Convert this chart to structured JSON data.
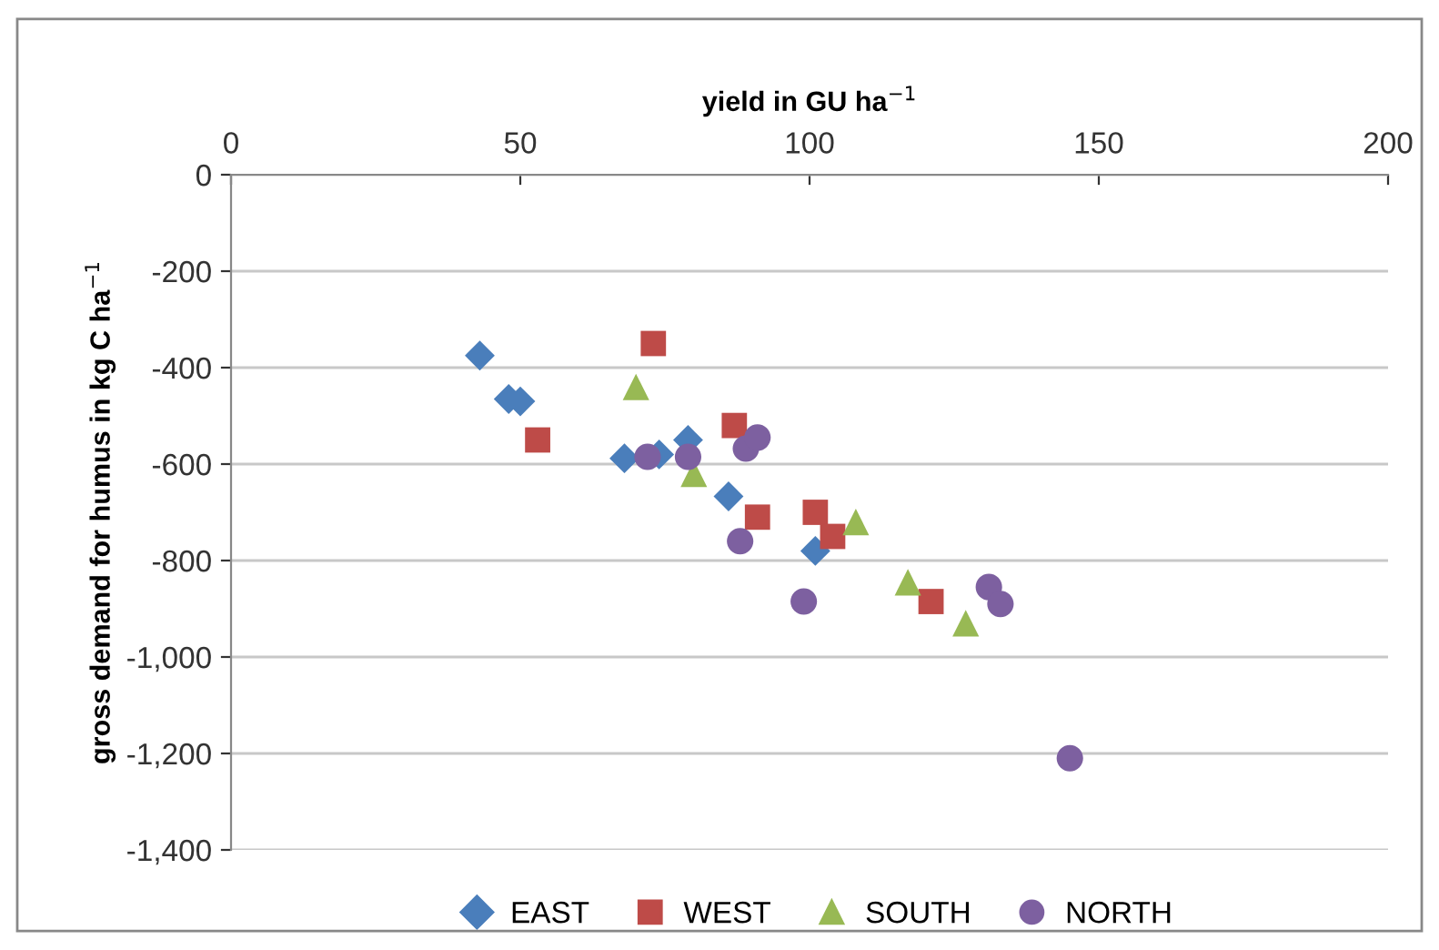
{
  "chart_data": {
    "type": "scatter",
    "xlabel": "yield in GU ha$^{−1}$",
    "ylabel": "gross demand for humus in kg C ha$^{−1}$",
    "xlim": [
      0,
      200
    ],
    "xticks": [
      0,
      50,
      100,
      150,
      200
    ],
    "ylim": [
      -1400,
      0
    ],
    "yticks": [
      {
        "value": -1400,
        "label": "-1,400"
      },
      {
        "value": -1200,
        "label": "-1,200"
      },
      {
        "value": -1000,
        "label": "-1,000"
      },
      {
        "value": -800,
        "label": "-800"
      },
      {
        "value": -600,
        "label": "-600"
      },
      {
        "value": -400,
        "label": "-400"
      },
      {
        "value": -200,
        "label": "-200"
      },
      0
    ],
    "grid": "y",
    "legend": "bottom",
    "series": [
      {
        "name": "EAST",
        "color": "#4a7ebb",
        "marker": "diamond",
        "x": [
          43,
          48,
          50,
          68,
          74,
          79,
          86,
          101
        ],
        "values": [
          -375,
          -465,
          -470,
          -588,
          -580,
          -550,
          -667,
          -780
        ]
      },
      {
        "name": "WEST",
        "color": "#be4b48",
        "marker": "square",
        "x": [
          73,
          53,
          87,
          91,
          101,
          104,
          121
        ],
        "values": [
          -350,
          -550,
          -520,
          -710,
          -700,
          -750,
          -885
        ]
      },
      {
        "name": "SOUTH",
        "color": "#98b954",
        "marker": "triangle",
        "x": [
          70,
          80,
          108,
          117,
          127
        ],
        "values": [
          -440,
          -620,
          -720,
          -845,
          -930
        ]
      },
      {
        "name": "NORTH",
        "color": "#7d60a0",
        "marker": "circle",
        "x": [
          72,
          79,
          89,
          91,
          88,
          99,
          131,
          133,
          145
        ],
        "values": [
          -585,
          -585,
          -568,
          -545,
          -760,
          -885,
          -855,
          -890,
          -1210
        ]
      }
    ]
  }
}
